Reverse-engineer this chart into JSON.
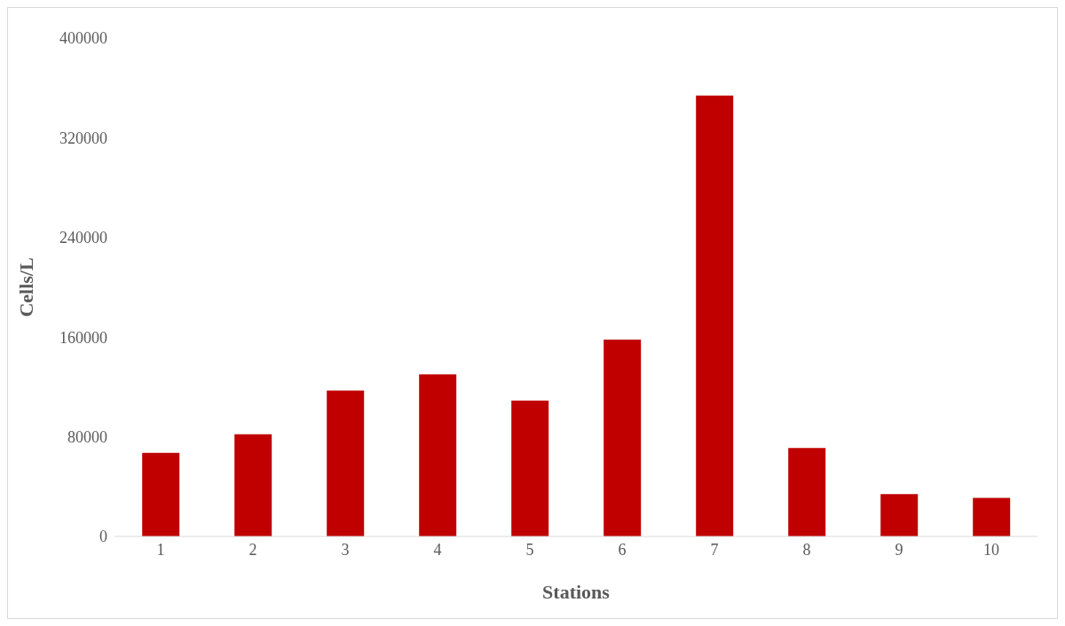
{
  "chart_data": {
    "type": "bar",
    "xlabel": "Stations",
    "ylabel": "Cells/L",
    "categories": [
      "1",
      "2",
      "3",
      "4",
      "5",
      "6",
      "7",
      "8",
      "9",
      "10"
    ],
    "values": [
      67000,
      82000,
      117000,
      130000,
      109000,
      158000,
      354000,
      71000,
      34000,
      31000
    ],
    "color": "#c00000",
    "ylim": [
      0,
      400000
    ],
    "yticks": [
      0,
      80000,
      160000,
      240000,
      320000,
      400000
    ],
    "grid": false,
    "legend": false
  }
}
